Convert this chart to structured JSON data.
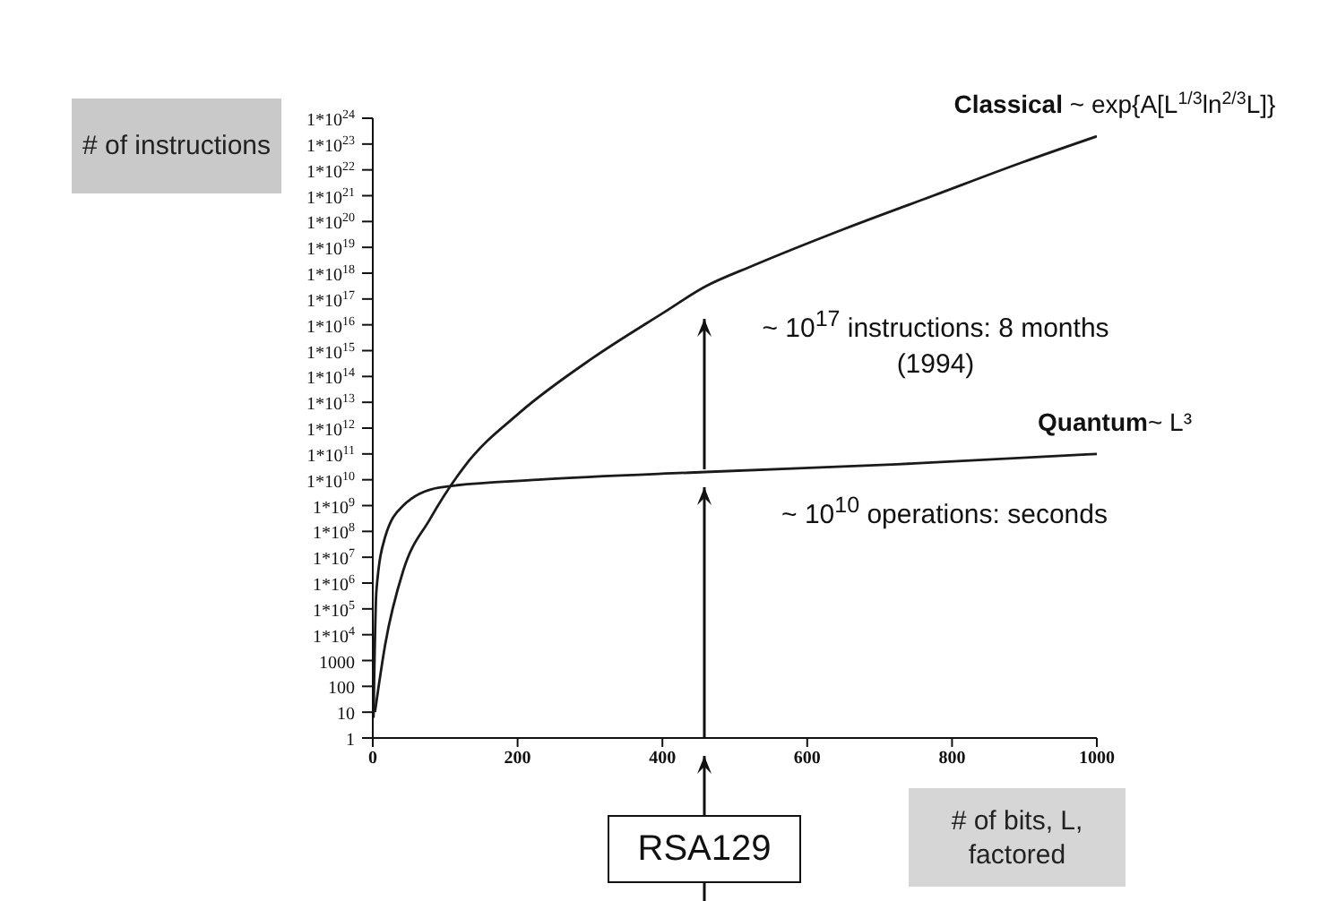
{
  "chart_data": {
    "type": "line",
    "xlabel": "# of bits, L, factored",
    "ylabel": "# of instructions",
    "log": "y",
    "xlim": [
      0,
      1000
    ],
    "xticks": [
      0,
      200,
      400,
      600,
      800,
      1000
    ],
    "ylim": [
      1,
      1e+24
    ],
    "yticks": [
      1,
      10,
      100,
      1000,
      {
        "value": 10000.0,
        "label": "1*10$^{4}$"
      },
      {
        "value": 100000.0,
        "label": "1*10$^{5}$"
      },
      {
        "value": 1000000.0,
        "label": "1*10$^{6}$"
      },
      {
        "value": 10000000.0,
        "label": "1*10$^{7}$"
      },
      {
        "value": 100000000.0,
        "label": "1*10$^{8}$"
      },
      {
        "value": 1000000000.0,
        "label": "1*10$^{9}$"
      },
      {
        "value": 10000000000.0,
        "label": "1*10$^{10}$"
      },
      {
        "value": 100000000000.0,
        "label": "1*10$^{11}$"
      },
      {
        "value": 1000000000000.0,
        "label": "1*10$^{12}$"
      },
      {
        "value": 10000000000000.0,
        "label": "1*10$^{13}$"
      },
      {
        "value": 100000000000000.0,
        "label": "1*10$^{14}$"
      },
      {
        "value": 1000000000000000.0,
        "label": "1*10$^{15}$"
      },
      {
        "value": 1e+16,
        "label": "1*10$^{16}$"
      },
      {
        "value": 1e+17,
        "label": "1*10$^{17}$"
      },
      {
        "value": 1e+18,
        "label": "1*10$^{18}$"
      },
      {
        "value": 1e+19,
        "label": "1*10$^{19}$"
      },
      {
        "value": 1e+20,
        "label": "1*10$^{20}$"
      },
      {
        "value": 1e+21,
        "label": "1*10$^{21}$"
      },
      {
        "value": 1e+22,
        "label": "1*10$^{22}$"
      },
      {
        "value": 1e+23,
        "label": "1*10$^{23}$"
      },
      {
        "value": 1e+24,
        "label": "1*10$^{24}$"
      }
    ],
    "marker": "none",
    "line_style": "solid",
    "series": [
      {
        "name": "Classical ~ exp{A[L$^{1/3}$ln$^{2/3}$L]}",
        "color": "#1a1a1a",
        "x": [
          3,
          17,
          42,
          79,
          129,
          203,
          303,
          402,
          459,
          526,
          650,
          774,
          898,
          1000
        ],
        "values": [
          10,
          4000.0,
          3000000.0,
          300000000.0,
          40000000000.0,
          4000000000000.0,
          500000000000000.0,
          3e+16,
          3e+17,
          2e+18,
          5e+19,
          1e+21,
          2e+22,
          2e+23
        ]
      },
      {
        "name": "Quantum~ L³",
        "color": "#1a1a1a",
        "x": [
          1,
          5,
          17,
          42,
          92,
          228,
          459,
          725,
          1000
        ],
        "values": [
          6,
          500000.0,
          60000000.0,
          1000000000.0,
          5000000000.0,
          10000000000.0,
          20000000000.0,
          40000000000.0,
          100000000000.0
        ]
      }
    ],
    "annotations": [
      "RSA129",
      "~ 10$^{10}$ operations: seconds",
      "~ 10$^{17}$ instructions: 8 months (1994)"
    ]
  }
}
